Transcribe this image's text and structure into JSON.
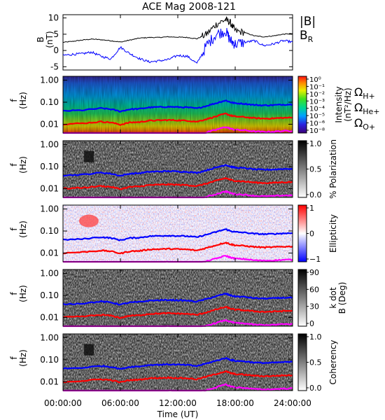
{
  "chart_data": {
    "title": "ACE Mag 2008-121",
    "xlabel": "Time (UT)",
    "x_ticks": [
      "00:00:00",
      "06:00:00",
      "12:00:00",
      "18:00:00",
      "24:00:00"
    ],
    "panels": [
      {
        "type": "line",
        "ylabel": "B (nT)",
        "ylim": [
          -6,
          11
        ],
        "y_ticks": [
          -5,
          0,
          5,
          10
        ],
        "legend": [
          {
            "label": "|B|",
            "color": "#000000"
          },
          {
            "label": "B_R",
            "color": "#0000ff"
          }
        ],
        "series": [
          {
            "name": "|B|",
            "color": "#000000",
            "x": [
              0,
              1,
              2,
              3,
              4,
              5,
              6,
              7,
              8,
              9,
              10,
              11,
              12,
              13,
              14,
              15,
              16,
              17,
              17.5,
              18,
              19,
              20,
              21,
              22,
              23,
              24
            ],
            "y": [
              2.5,
              2.8,
              3.2,
              3.5,
              3.3,
              3.0,
              2.6,
              3.2,
              3.8,
              4.0,
              4.0,
              4.2,
              4.1,
              4.0,
              3.6,
              5.0,
              8.0,
              9.5,
              8.5,
              6.0,
              5.5,
              4.5,
              4.2,
              4.5,
              5.0,
              5.2
            ]
          },
          {
            "name": "B_R",
            "color": "#0000ff",
            "x": [
              0,
              1,
              2,
              3,
              4,
              5,
              6,
              7,
              8,
              9,
              10,
              11,
              12,
              13,
              14,
              15,
              16,
              17,
              17.5,
              18,
              19,
              20,
              21,
              22,
              23,
              24
            ],
            "y": [
              -1.5,
              -1.2,
              -1.0,
              -0.5,
              -1.8,
              -2.6,
              1.0,
              -1.0,
              -2.5,
              -3.5,
              -3.2,
              -2.8,
              -1.5,
              -1.8,
              -4.0,
              1.5,
              5.0,
              6.0,
              3.0,
              2.0,
              2.5,
              3.0,
              1.5,
              2.0,
              3.0,
              2.6
            ]
          }
        ]
      },
      {
        "type": "heatmap",
        "ylabel": "f (Hz)",
        "cbar_label": "Intensity (nT²/Hz)",
        "colormap": "rainbow",
        "cbar_ticks": [
          "10⁰",
          "10⁻¹",
          "10⁻²",
          "10⁻³",
          "10⁻⁴",
          "10⁻⁵",
          "10⁻⁶",
          "10⁻⁸"
        ],
        "legend": [
          {
            "label": "ΩH+",
            "color": "#0000ff"
          },
          {
            "label": "ΩHe+",
            "color": "#ff0000"
          },
          {
            "label": "ΩO+",
            "color": "#ff00ff"
          }
        ]
      },
      {
        "type": "heatmap",
        "ylabel": "f (Hz)",
        "cbar_label": "% Polarization",
        "colormap": "gray",
        "cbar_ticks": [
          "1.0",
          "0.5",
          "0.0"
        ]
      },
      {
        "type": "heatmap",
        "ylabel": "f (Hz)",
        "cbar_label": "Ellipticity",
        "colormap": "bwr",
        "cbar_ticks": [
          "1",
          "0",
          "−1"
        ]
      },
      {
        "type": "heatmap",
        "ylabel": "f (Hz)",
        "cbar_label": "k dot B (Deg)",
        "colormap": "gray",
        "cbar_ticks": [
          "90",
          "60",
          "30",
          "0"
        ]
      },
      {
        "type": "heatmap",
        "ylabel": "f (Hz)",
        "cbar_label": "Coherency",
        "colormap": "gray",
        "cbar_ticks": [
          "1.0",
          "0.5",
          "0.0"
        ]
      }
    ],
    "freq_ticks": [
      "1.00",
      "0.10",
      "0.01"
    ],
    "ylim_f": [
      0.004,
      1.5
    ],
    "gyrofrequency_lines": [
      {
        "name": "ΩH+",
        "color": "#0000ff",
        "x": [
          0,
          2,
          4,
          5,
          6,
          7,
          8,
          9,
          10,
          11,
          12,
          13,
          14,
          15,
          16,
          17,
          17.5,
          18,
          19,
          20,
          21,
          22,
          23,
          24
        ],
        "y": [
          0.04,
          0.043,
          0.053,
          0.048,
          0.038,
          0.048,
          0.05,
          0.058,
          0.06,
          0.062,
          0.06,
          0.058,
          0.052,
          0.068,
          0.09,
          0.12,
          0.1,
          0.09,
          0.085,
          0.075,
          0.072,
          0.074,
          0.078,
          0.08
        ]
      },
      {
        "name": "ΩHe+",
        "color": "#ff0000",
        "x": [
          0,
          2,
          4,
          5,
          6,
          7,
          8,
          9,
          10,
          11,
          12,
          13,
          14,
          15,
          16,
          17,
          17.5,
          18,
          19,
          20,
          21,
          22,
          23,
          24
        ],
        "y": [
          0.01,
          0.011,
          0.013,
          0.012,
          0.0095,
          0.012,
          0.0125,
          0.0145,
          0.015,
          0.0155,
          0.015,
          0.0145,
          0.013,
          0.017,
          0.0225,
          0.03,
          0.025,
          0.0225,
          0.021,
          0.019,
          0.018,
          0.0185,
          0.0195,
          0.02
        ]
      },
      {
        "name": "ΩO+",
        "color": "#ff00ff",
        "x": [
          0,
          2,
          4,
          5,
          6,
          7,
          8,
          9,
          10,
          11,
          12,
          13,
          14,
          15,
          16,
          17,
          17.5,
          18,
          19,
          20,
          21,
          22,
          23,
          24
        ],
        "y": [
          0.0026,
          0.0027,
          0.0033,
          0.003,
          0.0024,
          0.003,
          0.0031,
          0.0036,
          0.0037,
          0.0039,
          0.0037,
          0.0036,
          0.0033,
          0.0042,
          0.0056,
          0.0075,
          0.0063,
          0.0056,
          0.0053,
          0.0047,
          0.0045,
          0.0046,
          0.0049,
          0.005
        ]
      }
    ]
  }
}
